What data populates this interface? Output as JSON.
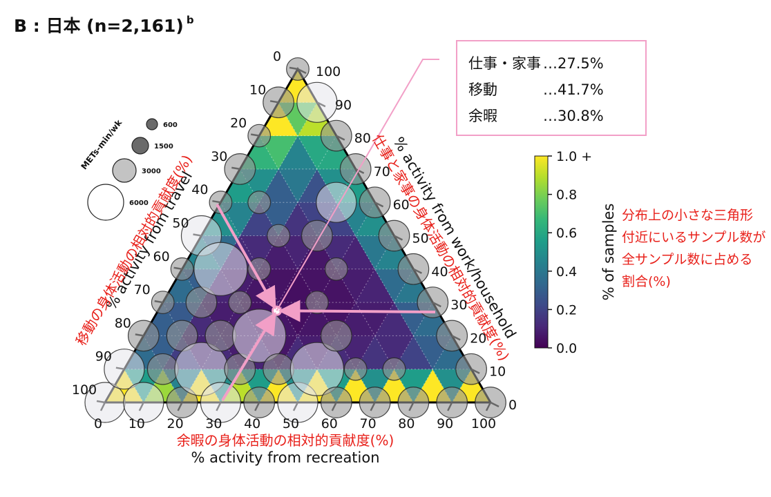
{
  "heading": {
    "text": "B : 日本 (n=2,161)",
    "sup": "b"
  },
  "info_box": {
    "rows": [
      {
        "label": "仕事・家事",
        "value": "…27.5%"
      },
      {
        "label": "移動",
        "value": "…41.7%"
      },
      {
        "label": "余暇",
        "value": "…30.8%"
      }
    ]
  },
  "colors": {
    "highlight": "#f29fc7",
    "annotation_red": "#e8201a",
    "frame": "#000000"
  },
  "chart_data": {
    "type": "ternary-heatmap",
    "axes": {
      "bottom": {
        "label": "% activity from recreation",
        "label_ja": "余暇の身体活動の相対的貢献度(%)",
        "ticks": [
          "0",
          "10",
          "20",
          "30",
          "40",
          "50",
          "60",
          "70",
          "80",
          "90",
          "100"
        ]
      },
      "left": {
        "label": "% activity from travel",
        "label_ja": "移動の身体活動の相対的貢献度(%)",
        "ticks": [
          "0",
          "10",
          "20",
          "30",
          "40",
          "50",
          "60",
          "70",
          "80",
          "90",
          "100"
        ]
      },
      "right": {
        "label": "% activity from work/household",
        "label_ja": "仕事と家事の身体活動の相対的貢献度(%)",
        "ticks": [
          "0",
          "10",
          "20",
          "30",
          "40",
          "50",
          "60",
          "70",
          "80",
          "90",
          "100"
        ]
      }
    },
    "colorbar": {
      "label": "% of samples",
      "ticks": [
        "0.0",
        "0.2",
        "0.4",
        "0.6",
        "0.8",
        "1.0 +"
      ],
      "range": [
        0,
        1.0
      ],
      "colormap": "viridis",
      "note_ja": [
        "分布上の小さな三角形",
        "付近にいるサンプル数が",
        "全サンプル数に占める",
        "割合(%)"
      ]
    },
    "size_legend": {
      "title": "METs-min/wk",
      "values": [
        600,
        1500,
        3000,
        6000
      ],
      "labels": [
        "600",
        "1500",
        "3000",
        "6000"
      ]
    },
    "mean_point": {
      "work_household": 27.5,
      "travel": 41.7,
      "recreation": 30.8
    },
    "cells": [
      {
        "u": 0,
        "v": 0,
        "up": true,
        "c": 1.0
      },
      {
        "u": 1,
        "v": 0,
        "up": true,
        "c": 0.85
      },
      {
        "u": 2,
        "v": 0,
        "up": true,
        "c": 1.0
      },
      {
        "u": 3,
        "v": 0,
        "up": true,
        "c": 0.9
      },
      {
        "u": 4,
        "v": 0,
        "up": true,
        "c": 1.0
      },
      {
        "u": 5,
        "v": 0,
        "up": true,
        "c": 1.0
      },
      {
        "u": 6,
        "v": 0,
        "up": true,
        "c": 1.0
      },
      {
        "u": 7,
        "v": 0,
        "up": true,
        "c": 1.0
      },
      {
        "u": 8,
        "v": 0,
        "up": true,
        "c": 1.0
      },
      {
        "u": 9,
        "v": 0,
        "up": true,
        "c": 1.0
      },
      {
        "u": 0,
        "v": 0,
        "up": false,
        "c": 0.55
      },
      {
        "u": 1,
        "v": 0,
        "up": false,
        "c": 0.45
      },
      {
        "u": 2,
        "v": 0,
        "up": false,
        "c": 0.5
      },
      {
        "u": 3,
        "v": 0,
        "up": false,
        "c": 0.55
      },
      {
        "u": 4,
        "v": 0,
        "up": false,
        "c": 0.5
      },
      {
        "u": 5,
        "v": 0,
        "up": false,
        "c": 0.55
      },
      {
        "u": 6,
        "v": 0,
        "up": false,
        "c": 0.5
      },
      {
        "u": 7,
        "v": 0,
        "up": false,
        "c": 0.55
      },
      {
        "u": 8,
        "v": 0,
        "up": false,
        "c": 0.5
      },
      {
        "u": 0,
        "v": 1,
        "up": true,
        "c": 0.35
      },
      {
        "u": 1,
        "v": 1,
        "up": true,
        "c": 0.18
      },
      {
        "u": 2,
        "v": 1,
        "up": true,
        "c": 0.12
      },
      {
        "u": 3,
        "v": 1,
        "up": true,
        "c": 0.1
      },
      {
        "u": 4,
        "v": 1,
        "up": true,
        "c": 0.12
      },
      {
        "u": 5,
        "v": 1,
        "up": true,
        "c": 0.12
      },
      {
        "u": 6,
        "v": 1,
        "up": true,
        "c": 0.15
      },
      {
        "u": 7,
        "v": 1,
        "up": true,
        "c": 0.2
      },
      {
        "u": 8,
        "v": 1,
        "up": true,
        "c": 0.35
      },
      {
        "u": 0,
        "v": 1,
        "up": false,
        "c": 0.3
      },
      {
        "u": 1,
        "v": 1,
        "up": false,
        "c": 0.1
      },
      {
        "u": 2,
        "v": 1,
        "up": false,
        "c": 0.08
      },
      {
        "u": 3,
        "v": 1,
        "up": false,
        "c": 0.06
      },
      {
        "u": 4,
        "v": 1,
        "up": false,
        "c": 0.08
      },
      {
        "u": 5,
        "v": 1,
        "up": false,
        "c": 0.1
      },
      {
        "u": 6,
        "v": 1,
        "up": false,
        "c": 0.12
      },
      {
        "u": 7,
        "v": 1,
        "up": false,
        "c": 0.3
      },
      {
        "u": 0,
        "v": 2,
        "up": true,
        "c": 0.3
      },
      {
        "u": 1,
        "v": 2,
        "up": true,
        "c": 0.12
      },
      {
        "u": 2,
        "v": 2,
        "up": true,
        "c": 0.08
      },
      {
        "u": 3,
        "v": 2,
        "up": true,
        "c": 0.06
      },
      {
        "u": 4,
        "v": 2,
        "up": true,
        "c": 0.06
      },
      {
        "u": 5,
        "v": 2,
        "up": true,
        "c": 0.08
      },
      {
        "u": 6,
        "v": 2,
        "up": true,
        "c": 0.12
      },
      {
        "u": 7,
        "v": 2,
        "up": true,
        "c": 0.35
      },
      {
        "u": 0,
        "v": 2,
        "up": false,
        "c": 0.28
      },
      {
        "u": 1,
        "v": 2,
        "up": false,
        "c": 0.08
      },
      {
        "u": 2,
        "v": 2,
        "up": false,
        "c": 0.05
      },
      {
        "u": 3,
        "v": 2,
        "up": false,
        "c": 0.04
      },
      {
        "u": 4,
        "v": 2,
        "up": false,
        "c": 0.05
      },
      {
        "u": 5,
        "v": 2,
        "up": false,
        "c": 0.08
      },
      {
        "u": 6,
        "v": 2,
        "up": false,
        "c": 0.3
      },
      {
        "u": 0,
        "v": 3,
        "up": true,
        "c": 0.35
      },
      {
        "u": 1,
        "v": 3,
        "up": true,
        "c": 0.1
      },
      {
        "u": 2,
        "v": 3,
        "up": true,
        "c": 0.06
      },
      {
        "u": 3,
        "v": 3,
        "up": true,
        "c": 0.04
      },
      {
        "u": 4,
        "v": 3,
        "up": true,
        "c": 0.05
      },
      {
        "u": 5,
        "v": 3,
        "up": true,
        "c": 0.1
      },
      {
        "u": 6,
        "v": 3,
        "up": true,
        "c": 0.4
      },
      {
        "u": 0,
        "v": 3,
        "up": false,
        "c": 0.3
      },
      {
        "u": 1,
        "v": 3,
        "up": false,
        "c": 0.08
      },
      {
        "u": 2,
        "v": 3,
        "up": false,
        "c": 0.05
      },
      {
        "u": 3,
        "v": 3,
        "up": false,
        "c": 0.05
      },
      {
        "u": 4,
        "v": 3,
        "up": false,
        "c": 0.08
      },
      {
        "u": 5,
        "v": 3,
        "up": false,
        "c": 0.35
      },
      {
        "u": 0,
        "v": 4,
        "up": true,
        "c": 0.45
      },
      {
        "u": 1,
        "v": 4,
        "up": true,
        "c": 0.12
      },
      {
        "u": 2,
        "v": 4,
        "up": true,
        "c": 0.08
      },
      {
        "u": 3,
        "v": 4,
        "up": true,
        "c": 0.06
      },
      {
        "u": 4,
        "v": 4,
        "up": true,
        "c": 0.1
      },
      {
        "u": 5,
        "v": 4,
        "up": true,
        "c": 0.45
      },
      {
        "u": 0,
        "v": 4,
        "up": false,
        "c": 0.35
      },
      {
        "u": 1,
        "v": 4,
        "up": false,
        "c": 0.12
      },
      {
        "u": 2,
        "v": 4,
        "up": false,
        "c": 0.1
      },
      {
        "u": 3,
        "v": 4,
        "up": false,
        "c": 0.12
      },
      {
        "u": 4,
        "v": 4,
        "up": false,
        "c": 0.4
      },
      {
        "u": 0,
        "v": 5,
        "up": true,
        "c": 0.5
      },
      {
        "u": 1,
        "v": 5,
        "up": true,
        "c": 0.2
      },
      {
        "u": 2,
        "v": 5,
        "up": true,
        "c": 0.15
      },
      {
        "u": 3,
        "v": 5,
        "up": true,
        "c": 0.2
      },
      {
        "u": 4,
        "v": 5,
        "up": true,
        "c": 0.5
      },
      {
        "u": 0,
        "v": 5,
        "up": false,
        "c": 0.45
      },
      {
        "u": 1,
        "v": 5,
        "up": false,
        "c": 0.3
      },
      {
        "u": 2,
        "v": 5,
        "up": false,
        "c": 0.2
      },
      {
        "u": 3,
        "v": 5,
        "up": false,
        "c": 0.45
      },
      {
        "u": 0,
        "v": 6,
        "up": true,
        "c": 0.55
      },
      {
        "u": 1,
        "v": 6,
        "up": true,
        "c": 0.3
      },
      {
        "u": 2,
        "v": 6,
        "up": true,
        "c": 0.25
      },
      {
        "u": 3,
        "v": 6,
        "up": true,
        "c": 0.55
      },
      {
        "u": 0,
        "v": 6,
        "up": false,
        "c": 0.5
      },
      {
        "u": 1,
        "v": 6,
        "up": false,
        "c": 0.4
      },
      {
        "u": 2,
        "v": 6,
        "up": false,
        "c": 0.5
      },
      {
        "u": 0,
        "v": 7,
        "up": true,
        "c": 0.65
      },
      {
        "u": 1,
        "v": 7,
        "up": true,
        "c": 0.45
      },
      {
        "u": 2,
        "v": 7,
        "up": true,
        "c": 0.6
      },
      {
        "u": 0,
        "v": 7,
        "up": false,
        "c": 0.7
      },
      {
        "u": 1,
        "v": 7,
        "up": false,
        "c": 0.6
      },
      {
        "u": 0,
        "v": 8,
        "up": true,
        "c": 1.0
      },
      {
        "u": 1,
        "v": 8,
        "up": true,
        "c": 0.9
      },
      {
        "u": 0,
        "v": 8,
        "up": false,
        "c": 0.75
      },
      {
        "u": 0,
        "v": 9,
        "up": true,
        "c": 1.0
      }
    ],
    "bubbles": [
      {
        "r": 0,
        "t": 100,
        "m": 3000
      },
      {
        "r": 0,
        "t": 90,
        "m": 3000
      },
      {
        "r": 10,
        "t": 90,
        "m": 3000
      },
      {
        "r": 0,
        "t": 80,
        "m": 1500
      },
      {
        "r": 10,
        "t": 80,
        "m": 1500
      },
      {
        "r": 20,
        "t": 80,
        "m": 1500
      },
      {
        "r": 0,
        "t": 70,
        "m": 600
      },
      {
        "r": 10,
        "t": 70,
        "m": 1500
      },
      {
        "r": 20,
        "t": 70,
        "m": 6000
      },
      {
        "r": 30,
        "t": 70,
        "m": 3000
      },
      {
        "r": 0,
        "t": 60,
        "m": 600
      },
      {
        "r": 10,
        "t": 60,
        "m": 1500
      },
      {
        "r": 20,
        "t": 60,
        "m": 1500
      },
      {
        "r": 30,
        "t": 60,
        "m": 1500
      },
      {
        "r": 40,
        "t": 60,
        "m": 1500
      },
      {
        "r": 0,
        "t": 50,
        "m": 3000
      },
      {
        "r": 10,
        "t": 50,
        "m": 6000
      },
      {
        "r": 20,
        "t": 50,
        "m": 600
      },
      {
        "r": 30,
        "t": 50,
        "m": 6000
      },
      {
        "r": 40,
        "t": 50,
        "m": 1500
      },
      {
        "r": 50,
        "t": 50,
        "m": 3000
      },
      {
        "r": 0,
        "t": 40,
        "m": 600
      },
      {
        "r": 20,
        "t": 40,
        "m": 600
      },
      {
        "r": 50,
        "t": 40,
        "m": 6000
      },
      {
        "r": 60,
        "t": 40,
        "m": 1500
      },
      {
        "r": 0,
        "t": 30,
        "m": 1500
      },
      {
        "r": 10,
        "t": 30,
        "m": 600
      },
      {
        "r": 20,
        "t": 30,
        "m": 600
      },
      {
        "r": 40,
        "t": 30,
        "m": 600
      },
      {
        "r": 50,
        "t": 30,
        "m": 1500
      },
      {
        "r": 60,
        "t": 30,
        "m": 600
      },
      {
        "r": 70,
        "t": 30,
        "m": 1500
      },
      {
        "r": 0,
        "t": 20,
        "m": 600
      },
      {
        "r": 30,
        "t": 20,
        "m": 1500
      },
      {
        "r": 40,
        "t": 20,
        "m": 600
      },
      {
        "r": 70,
        "t": 20,
        "m": 600
      },
      {
        "r": 80,
        "t": 20,
        "m": 1500
      },
      {
        "r": 0,
        "t": 10,
        "m": 1500
      },
      {
        "r": 30,
        "t": 10,
        "m": 3000
      },
      {
        "r": 90,
        "t": 10,
        "m": 1500
      },
      {
        "r": 0,
        "t": 0,
        "m": 600
      },
      {
        "r": 10,
        "t": 0,
        "m": 3000
      },
      {
        "r": 20,
        "t": 0,
        "m": 1500
      },
      {
        "r": 30,
        "t": 0,
        "m": 1500
      },
      {
        "r": 40,
        "t": 0,
        "m": 1500
      },
      {
        "r": 50,
        "t": 0,
        "m": 1500
      },
      {
        "r": 60,
        "t": 0,
        "m": 1500
      },
      {
        "r": 70,
        "t": 0,
        "m": 1500
      },
      {
        "r": 80,
        "t": 0,
        "m": 1500
      },
      {
        "r": 90,
        "t": 0,
        "m": 1500
      },
      {
        "r": 100,
        "t": 0,
        "m": 1500
      }
    ]
  }
}
